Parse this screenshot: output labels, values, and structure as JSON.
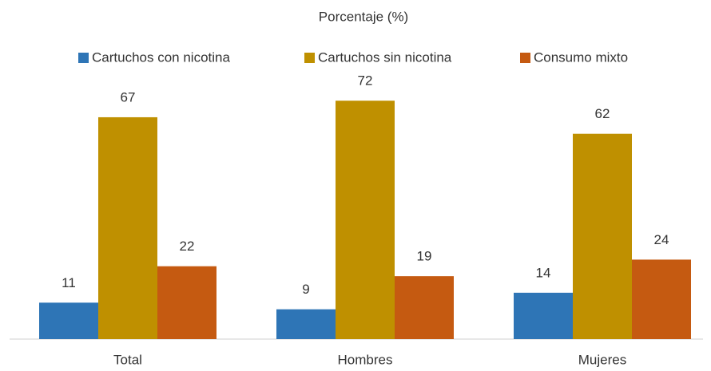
{
  "chart_data": {
    "type": "bar",
    "title": "Porcentaje (%)",
    "categories": [
      "Total",
      "Hombres",
      "Mujeres"
    ],
    "series": [
      {
        "name": "Cartuchos con nicotina",
        "color": "#2e75b6",
        "values": [
          11,
          9,
          14
        ]
      },
      {
        "name": "Cartuchos sin nicotina",
        "color": "#bf9000",
        "values": [
          67,
          72,
          62
        ]
      },
      {
        "name": "Consumo mixto",
        "color": "#c55a11",
        "values": [
          22,
          19,
          24
        ]
      }
    ],
    "ylim": [
      0,
      80
    ],
    "legend": "top"
  }
}
